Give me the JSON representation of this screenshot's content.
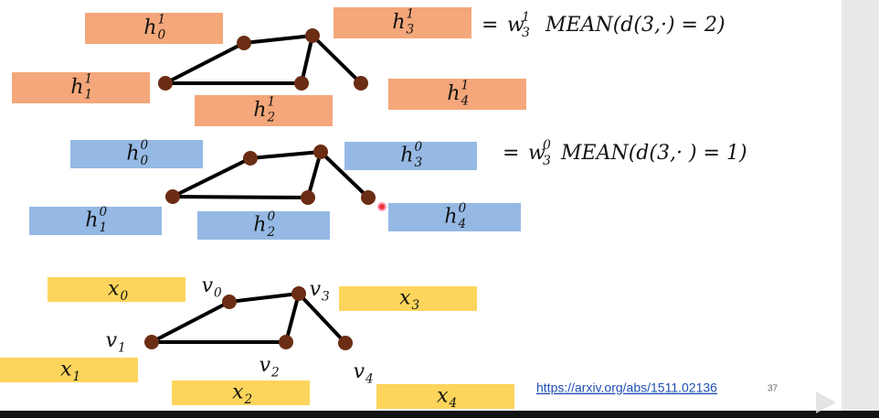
{
  "layer_h1": {
    "nodes": [
      {
        "base": "h",
        "sup": "1",
        "sub": "0"
      },
      {
        "base": "h",
        "sup": "1",
        "sub": "1"
      },
      {
        "base": "h",
        "sup": "1",
        "sub": "2"
      },
      {
        "base": "h",
        "sup": "1",
        "sub": "3"
      },
      {
        "base": "h",
        "sup": "1",
        "sub": "4"
      }
    ],
    "equation": {
      "prefix": "=",
      "base": "w",
      "sup": "1",
      "sub": "3",
      "rest": "MEAN(d(3,·) = 2)"
    }
  },
  "layer_h0": {
    "nodes": [
      {
        "base": "h",
        "sup": "0",
        "sub": "0"
      },
      {
        "base": "h",
        "sup": "0",
        "sub": "1"
      },
      {
        "base": "h",
        "sup": "0",
        "sub": "2"
      },
      {
        "base": "h",
        "sup": "0",
        "sub": "3"
      },
      {
        "base": "h",
        "sup": "0",
        "sub": "4"
      }
    ],
    "equation": {
      "prefix": "=",
      "base": "w",
      "sup": "0",
      "sub": "3",
      "rest": "MEAN(d(3,· ) = 1)"
    }
  },
  "layer_x": {
    "features": [
      {
        "base": "x",
        "sub": "0"
      },
      {
        "base": "x",
        "sub": "1"
      },
      {
        "base": "x",
        "sub": "2"
      },
      {
        "base": "x",
        "sub": "3"
      },
      {
        "base": "x",
        "sub": "4"
      }
    ],
    "vertices": [
      {
        "base": "v",
        "sub": "0"
      },
      {
        "base": "v",
        "sub": "1"
      },
      {
        "base": "v",
        "sub": "2"
      },
      {
        "base": "v",
        "sub": "3"
      },
      {
        "base": "v",
        "sub": "4"
      }
    ]
  },
  "footer": {
    "link": "https://arxiv.org/abs/1511.02136",
    "page": "37"
  }
}
